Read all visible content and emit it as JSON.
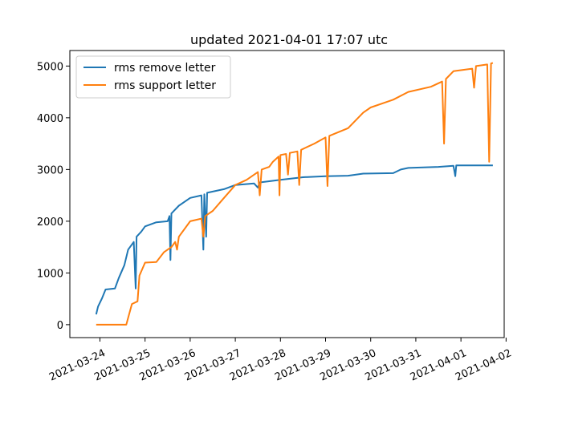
{
  "chart_data": {
    "type": "line",
    "title": "updated 2021-04-01 17:07 utc",
    "xlabel": "",
    "ylabel": "",
    "x_axis_type": "date",
    "xlim": [
      "2021-03-23T08:00",
      "2021-04-01T23:00"
    ],
    "ylim": [
      -250,
      5300
    ],
    "x_ticks": [
      "2021-03-24",
      "2021-03-25",
      "2021-03-26",
      "2021-03-27",
      "2021-03-28",
      "2021-03-29",
      "2021-03-30",
      "2021-03-31",
      "2021-04-01",
      "2021-04-02"
    ],
    "y_ticks": [
      0,
      1000,
      2000,
      3000,
      4000,
      5000
    ],
    "grid": false,
    "legend_position": "top-left",
    "series": [
      {
        "name": "rms remove letter",
        "color": "#1f77b4",
        "points": [
          [
            "2021-03-23T22:00",
            200
          ],
          [
            "2021-03-23T23:00",
            350
          ],
          [
            "2021-03-24T01:00",
            500
          ],
          [
            "2021-03-24T03:00",
            680
          ],
          [
            "2021-03-24T08:00",
            700
          ],
          [
            "2021-03-24T10:00",
            900
          ],
          [
            "2021-03-24T13:00",
            1150
          ],
          [
            "2021-03-24T15:00",
            1450
          ],
          [
            "2021-03-24T18:00",
            1600
          ],
          [
            "2021-03-24T19:00",
            700
          ],
          [
            "2021-03-24T19:30",
            1700
          ],
          [
            "2021-03-24T22:00",
            1800
          ],
          [
            "2021-03-25T00:00",
            1900
          ],
          [
            "2021-03-25T06:00",
            1980
          ],
          [
            "2021-03-25T12:00",
            2000
          ],
          [
            "2021-03-25T13:00",
            2100
          ],
          [
            "2021-03-25T13:30",
            1250
          ],
          [
            "2021-03-25T14:00",
            2150
          ],
          [
            "2021-03-25T18:00",
            2300
          ],
          [
            "2021-03-26T00:00",
            2450
          ],
          [
            "2021-03-26T06:00",
            2500
          ],
          [
            "2021-03-26T07:00",
            1450
          ],
          [
            "2021-03-26T07:30",
            2520
          ],
          [
            "2021-03-26T08:30",
            1700
          ],
          [
            "2021-03-26T09:00",
            2550
          ],
          [
            "2021-03-26T18:00",
            2620
          ],
          [
            "2021-03-27T00:00",
            2700
          ],
          [
            "2021-03-27T10:00",
            2730
          ],
          [
            "2021-03-27T12:00",
            2650
          ],
          [
            "2021-03-27T13:00",
            2750
          ],
          [
            "2021-03-28T00:00",
            2800
          ],
          [
            "2021-03-28T12:00",
            2850
          ],
          [
            "2021-03-29T00:00",
            2870
          ],
          [
            "2021-03-29T12:00",
            2880
          ],
          [
            "2021-03-29T20:00",
            2920
          ],
          [
            "2021-03-30T12:00",
            2930
          ],
          [
            "2021-03-30T16:00",
            3000
          ],
          [
            "2021-03-30T20:00",
            3030
          ],
          [
            "2021-03-31T12:00",
            3050
          ],
          [
            "2021-03-31T20:00",
            3070
          ],
          [
            "2021-03-31T21:00",
            2870
          ],
          [
            "2021-03-31T21:30",
            3080
          ],
          [
            "2021-04-01T17:00",
            3080
          ]
        ]
      },
      {
        "name": "rms support letter",
        "color": "#ff7f0e",
        "points": [
          [
            "2021-03-23T22:00",
            0
          ],
          [
            "2021-03-24T14:00",
            0
          ],
          [
            "2021-03-24T17:00",
            400
          ],
          [
            "2021-03-24T20:00",
            450
          ],
          [
            "2021-03-24T21:00",
            950
          ],
          [
            "2021-03-25T00:00",
            1200
          ],
          [
            "2021-03-25T06:00",
            1210
          ],
          [
            "2021-03-25T10:00",
            1400
          ],
          [
            "2021-03-25T14:00",
            1500
          ],
          [
            "2021-03-25T16:00",
            1600
          ],
          [
            "2021-03-25T17:00",
            1450
          ],
          [
            "2021-03-25T18:00",
            1700
          ],
          [
            "2021-03-26T00:00",
            2000
          ],
          [
            "2021-03-26T06:00",
            2050
          ],
          [
            "2021-03-26T07:00",
            1700
          ],
          [
            "2021-03-26T08:00",
            2100
          ],
          [
            "2021-03-26T12:00",
            2200
          ],
          [
            "2021-03-26T18:00",
            2450
          ],
          [
            "2021-03-27T00:00",
            2700
          ],
          [
            "2021-03-27T06:00",
            2800
          ],
          [
            "2021-03-27T12:00",
            2950
          ],
          [
            "2021-03-27T13:00",
            2500
          ],
          [
            "2021-03-27T14:00",
            3000
          ],
          [
            "2021-03-27T18:00",
            3050
          ],
          [
            "2021-03-27T20:00",
            3150
          ],
          [
            "2021-03-27T23:00",
            3250
          ],
          [
            "2021-03-27T23:30",
            2500
          ],
          [
            "2021-03-28T00:00",
            3280
          ],
          [
            "2021-03-28T03:00",
            3300
          ],
          [
            "2021-03-28T04:00",
            2900
          ],
          [
            "2021-03-28T05:00",
            3320
          ],
          [
            "2021-03-28T09:00",
            3350
          ],
          [
            "2021-03-28T10:00",
            2700
          ],
          [
            "2021-03-28T11:00",
            3380
          ],
          [
            "2021-03-28T18:00",
            3500
          ],
          [
            "2021-03-29T00:00",
            3620
          ],
          [
            "2021-03-29T01:00",
            2680
          ],
          [
            "2021-03-29T02:00",
            3650
          ],
          [
            "2021-03-29T12:00",
            3800
          ],
          [
            "2021-03-29T20:00",
            4100
          ],
          [
            "2021-03-30T00:00",
            4200
          ],
          [
            "2021-03-30T12:00",
            4350
          ],
          [
            "2021-03-30T20:00",
            4500
          ],
          [
            "2021-03-31T08:00",
            4600
          ],
          [
            "2021-03-31T14:00",
            4700
          ],
          [
            "2021-03-31T15:00",
            3500
          ],
          [
            "2021-03-31T16:00",
            4750
          ],
          [
            "2021-03-31T20:00",
            4900
          ],
          [
            "2021-04-01T06:00",
            4950
          ],
          [
            "2021-04-01T07:00",
            4580
          ],
          [
            "2021-04-01T08:00",
            5000
          ],
          [
            "2021-04-01T14:00",
            5030
          ],
          [
            "2021-04-01T15:00",
            3150
          ],
          [
            "2021-04-01T16:00",
            5050
          ],
          [
            "2021-04-01T17:00",
            5060
          ]
        ]
      }
    ]
  }
}
